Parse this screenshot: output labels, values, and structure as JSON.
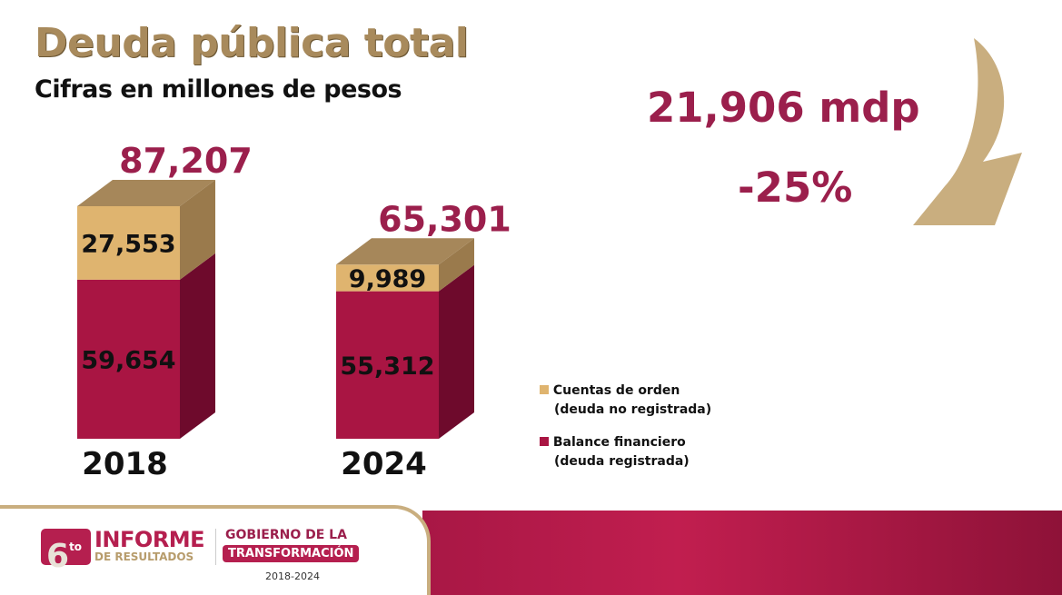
{
  "header": {
    "title": "Deuda pública total",
    "subtitle": "Cifras en millones de pesos"
  },
  "callout": {
    "difference": "21,906 mdp",
    "percent": "-25%",
    "arrow_icon": "curved-down-arrow"
  },
  "chart_data": {
    "type": "bar",
    "stacked": true,
    "style": "3d",
    "categories": [
      "2018",
      "2024"
    ],
    "series": [
      {
        "name": "Balance financiero (deuda registrada)",
        "values": [
          59654,
          55312
        ],
        "labels": [
          "59,654",
          "55,312"
        ],
        "color": "#a91543"
      },
      {
        "name": "Cuentas de orden (deuda no registrada)",
        "values": [
          27553,
          9989
        ],
        "labels": [
          "27,553",
          "9,989"
        ],
        "color": "#dfb46f"
      }
    ],
    "totals": [
      87207,
      65301
    ],
    "total_labels": [
      "87,207",
      "65,301"
    ],
    "title": "",
    "xlabel": "",
    "ylabel": "",
    "legend": {
      "position": "bottom-right",
      "items": [
        {
          "line1": "Cuentas de orden",
          "line2": "(deuda no registrada)",
          "color": "#dfb46f"
        },
        {
          "line1": "Balance financiero",
          "line2": "(deuda registrada)",
          "color": "#a91543"
        }
      ]
    }
  },
  "footer": {
    "badge_number": "6",
    "badge_sup": "to",
    "informe": "INFORME",
    "resultados": "DE RESULTADOS",
    "gobierno": "GOBIERNO DE LA",
    "transformacion": "TRANSFORMACIÓN",
    "period": "2018-2024"
  }
}
